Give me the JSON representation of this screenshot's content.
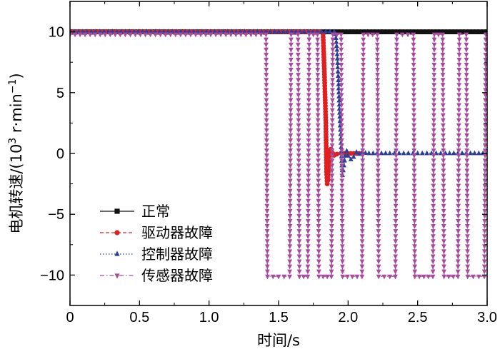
{
  "chart_data": {
    "type": "line",
    "title": "",
    "xlabel": "时间/s",
    "ylabel_main": "电机转速/(10",
    "ylabel_sup": "3",
    "ylabel_tail": " r·min",
    "ylabel_sup2": "−1",
    "ylabel_close": ")",
    "xlim": [
      0,
      3.0
    ],
    "ylim": [
      -12.5,
      12.5
    ],
    "x_ticks": [
      0,
      0.5,
      1.0,
      1.5,
      2.0,
      2.5,
      3.0
    ],
    "x_tick_labels": [
      "0",
      "0.5",
      "1.0",
      "1.5",
      "2.0",
      "2.5",
      "3.0"
    ],
    "y_ticks": [
      10,
      5,
      0,
      -5,
      -10
    ],
    "y_tick_labels": [
      "10",
      "5",
      "0",
      "−5",
      "−10"
    ],
    "legend_position": "lower-left",
    "series": [
      {
        "name": "正常",
        "color": "#111111",
        "marker": "square",
        "dash": "solid",
        "points": [
          [
            0,
            10
          ],
          [
            3.0,
            10
          ]
        ]
      },
      {
        "name": "驱动器故障",
        "color": "#e02020",
        "marker": "circle",
        "dash": "dashed",
        "points": [
          [
            0,
            10
          ],
          [
            1.8,
            10
          ],
          [
            1.82,
            9.8
          ],
          [
            1.83,
            6.5
          ],
          [
            1.84,
            2.5
          ],
          [
            1.845,
            -1.5
          ],
          [
            1.85,
            -2.5
          ],
          [
            1.855,
            -2.2
          ],
          [
            1.86,
            -1.0
          ],
          [
            1.865,
            -0.2
          ],
          [
            1.87,
            0.2
          ],
          [
            1.875,
            0.35
          ],
          [
            1.88,
            0.3
          ],
          [
            1.89,
            0.0
          ],
          [
            1.9,
            -0.15
          ],
          [
            1.92,
            -0.05
          ],
          [
            1.95,
            0.02
          ],
          [
            2.0,
            0.0
          ],
          [
            2.1,
            0.0
          ]
        ]
      },
      {
        "name": "控制器故障",
        "color": "#2a3f9a",
        "marker": "triangle-up",
        "dash": "dotted",
        "points": [
          [
            0,
            10
          ],
          [
            1.9,
            10
          ],
          [
            1.91,
            9.8
          ],
          [
            1.92,
            8.5
          ],
          [
            1.93,
            6.0
          ],
          [
            1.94,
            3.0
          ],
          [
            1.95,
            0.5
          ],
          [
            1.955,
            -1.0
          ],
          [
            1.96,
            -1.8
          ],
          [
            1.97,
            -1.0
          ],
          [
            1.98,
            -0.2
          ],
          [
            1.99,
            0.2
          ],
          [
            2.0,
            -0.2
          ],
          [
            2.02,
            -0.5
          ],
          [
            2.04,
            -0.3
          ],
          [
            2.06,
            0.1
          ],
          [
            2.08,
            -0.05
          ],
          [
            2.1,
            0.05
          ],
          [
            2.15,
            0.0
          ],
          [
            2.3,
            0.0
          ],
          [
            2.5,
            0.0
          ],
          [
            2.7,
            0.0
          ],
          [
            3.0,
            0.0
          ]
        ]
      },
      {
        "name": "传感器故障",
        "color": "#a64d9e",
        "marker": "triangle-down",
        "dash": "dashdot",
        "points": [
          [
            0,
            9.8
          ],
          [
            1.41,
            9.8
          ],
          [
            1.42,
            -10.1
          ],
          [
            1.58,
            -10.1
          ],
          [
            1.59,
            9.8
          ],
          [
            1.64,
            9.8
          ],
          [
            1.65,
            -10.1
          ],
          [
            1.71,
            -10.1
          ],
          [
            1.72,
            9.8
          ],
          [
            1.78,
            9.8
          ],
          [
            1.79,
            -10.1
          ],
          [
            1.88,
            -10.1
          ],
          [
            1.89,
            9.8
          ],
          [
            1.95,
            9.8
          ],
          [
            1.96,
            -10.1
          ],
          [
            2.1,
            -10.1
          ],
          [
            2.11,
            9.8
          ],
          [
            2.21,
            9.8
          ],
          [
            2.22,
            -10.1
          ],
          [
            2.34,
            -10.1
          ],
          [
            2.35,
            9.8
          ],
          [
            2.47,
            9.8
          ],
          [
            2.48,
            -10.1
          ],
          [
            2.61,
            -10.1
          ],
          [
            2.62,
            9.8
          ],
          [
            2.68,
            9.8
          ],
          [
            2.69,
            -10.1
          ],
          [
            2.79,
            -10.1
          ],
          [
            2.8,
            9.8
          ],
          [
            2.85,
            9.8
          ],
          [
            2.86,
            -10.1
          ],
          [
            2.98,
            -10.1
          ],
          [
            2.99,
            9.8
          ],
          [
            3.0,
            9.8
          ]
        ]
      }
    ]
  }
}
